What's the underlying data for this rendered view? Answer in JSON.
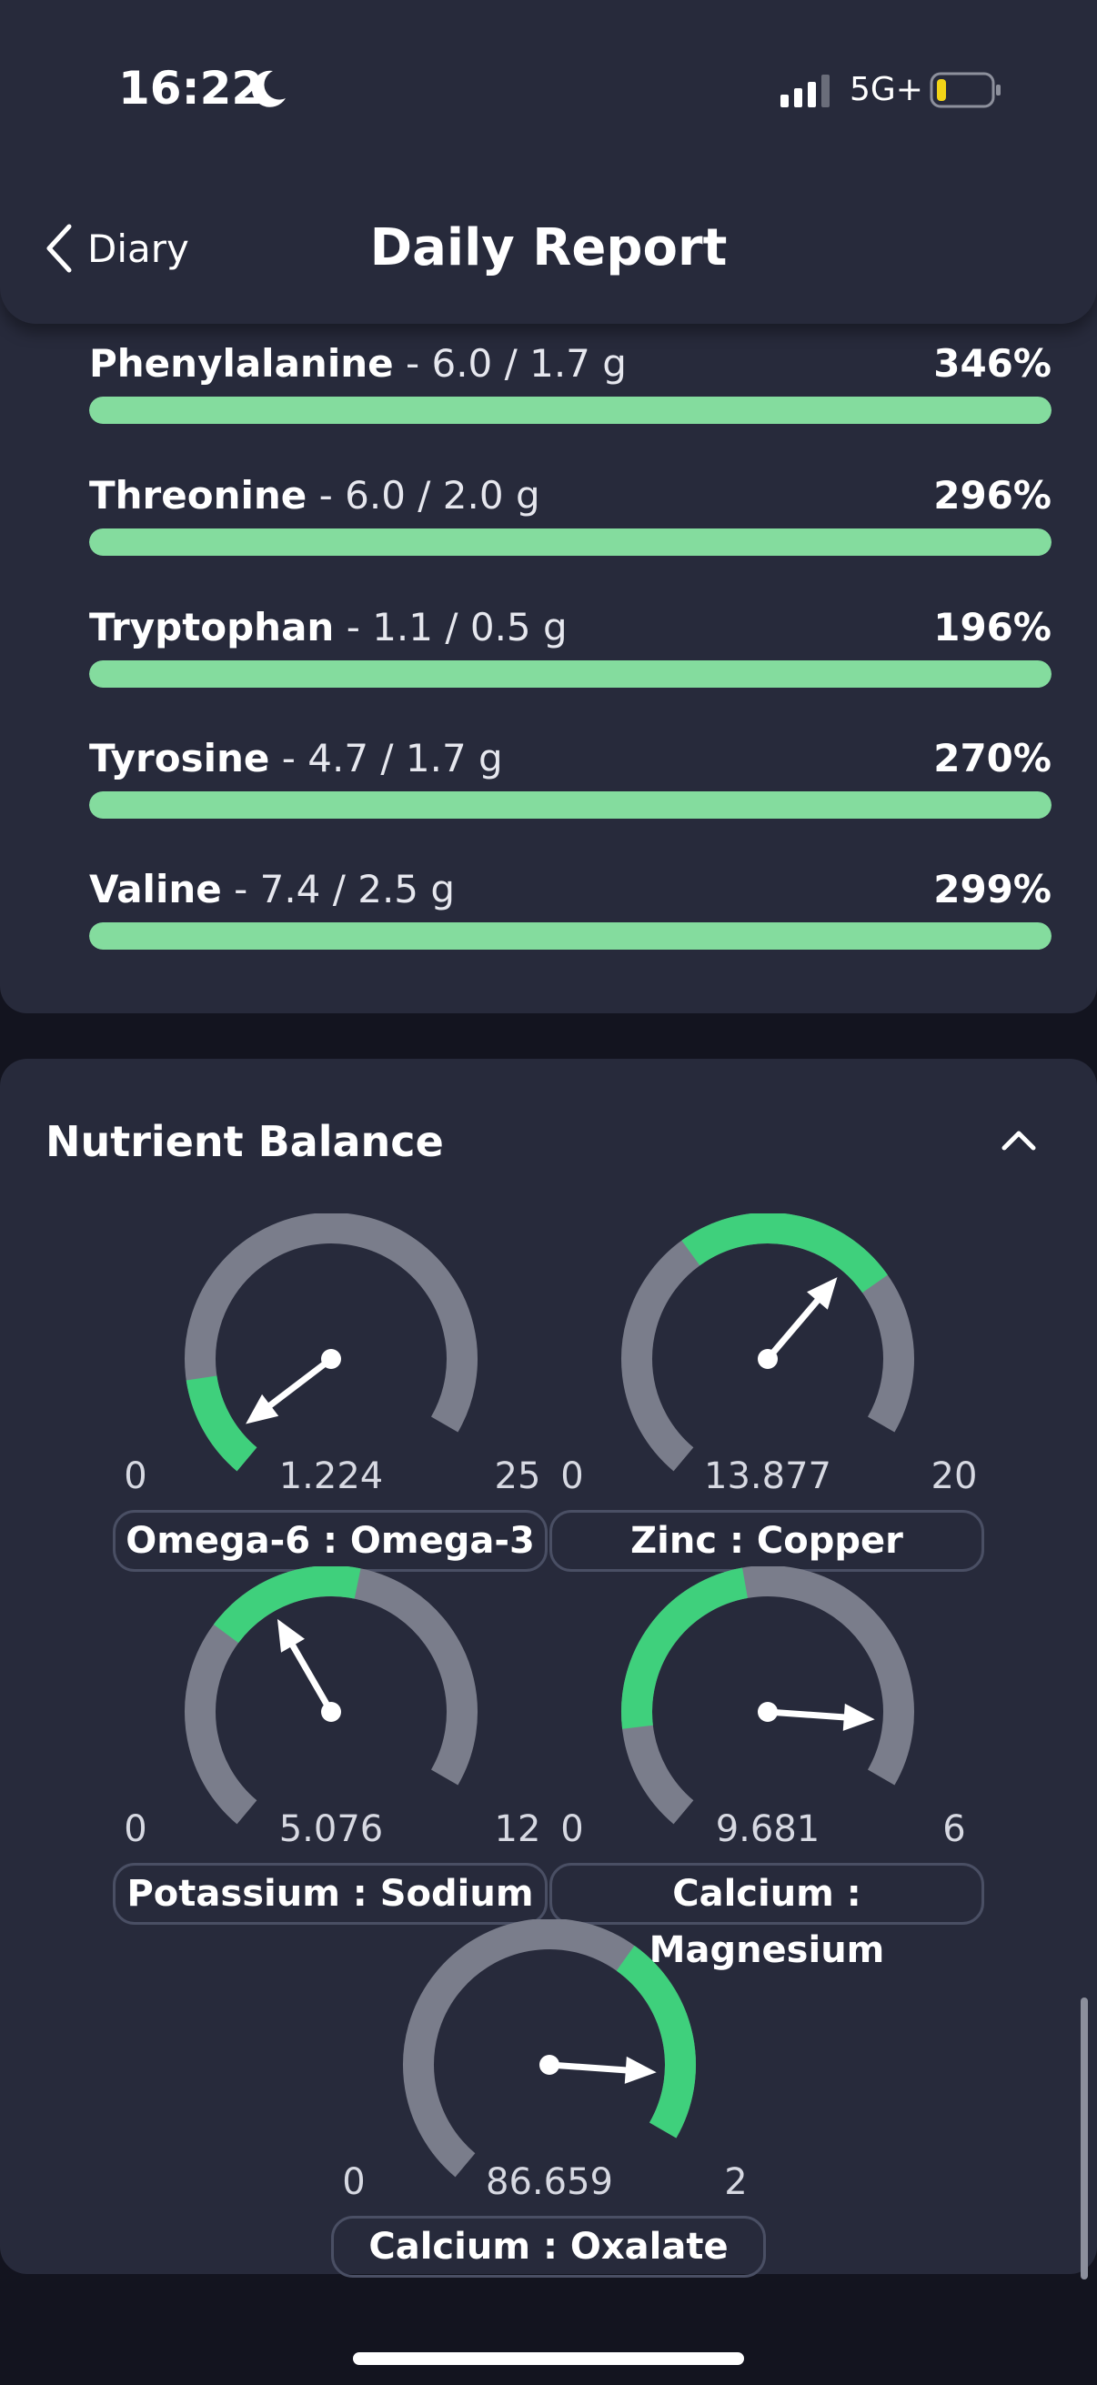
{
  "status_bar": {
    "time": "16:22",
    "network": "5G+"
  },
  "header": {
    "back_label": "Diary",
    "title": "Daily Report"
  },
  "amino_acids": [
    {
      "name": "Phenylalanine",
      "detail": " - 6.0 / 1.7 g",
      "percent": "346%",
      "fill": 1.0
    },
    {
      "name": "Threonine",
      "detail": " - 6.0 / 2.0 g",
      "percent": "296%",
      "fill": 1.0
    },
    {
      "name": "Tryptophan",
      "detail": " - 1.1 / 0.5 g",
      "percent": "196%",
      "fill": 1.0
    },
    {
      "name": "Tyrosine",
      "detail": " - 4.7 / 1.7 g",
      "percent": "270%",
      "fill": 1.0
    },
    {
      "name": "Valine",
      "detail": " - 7.4 / 2.5 g",
      "percent": "299%",
      "fill": 1.0
    }
  ],
  "nutrient_balance": {
    "title": "Nutrient Balance",
    "gauges": [
      {
        "label": "Omega-6 : Omega-3",
        "value": "1.224",
        "min": "0",
        "max": "25",
        "value_num": 1.224,
        "min_num": 0,
        "max_num": 25,
        "green_from": 0,
        "green_to": 4
      },
      {
        "label": "Zinc : Copper",
        "value": "13.877",
        "min": "0",
        "max": "20",
        "value_num": 13.877,
        "min_num": 0,
        "max_num": 20,
        "green_from": 8,
        "green_to": 15
      },
      {
        "label": "Potassium : Sodium",
        "value": "5.076",
        "min": "0",
        "max": "12",
        "value_num": 5.076,
        "min_num": 0,
        "max_num": 12,
        "green_from": 4,
        "green_to": 7
      },
      {
        "label": "Calcium : Magnesium",
        "value": "9.681",
        "min": "0",
        "max": "6",
        "value_num": 5.4,
        "min_num": 0,
        "max_num": 6,
        "green_from": 1,
        "green_to": 3
      },
      {
        "label": "Calcium : Oxalate",
        "value": "86.659",
        "min": "0",
        "max": "2",
        "value_num": 1.8,
        "min_num": 0,
        "max_num": 2,
        "green_from": 1.35,
        "green_to": 2
      }
    ]
  },
  "colors": {
    "panel": "#272a3b",
    "background": "#13141f",
    "bar_green": "#84dc9e",
    "gauge_track": "#7a7d8b",
    "gauge_green": "#3fd07c"
  }
}
